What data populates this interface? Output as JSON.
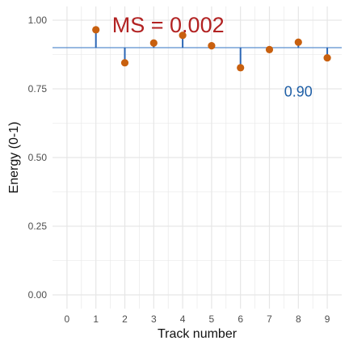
{
  "chart_data": {
    "type": "scatter",
    "xlabel": "Track number",
    "ylabel": "Energy (0-1)",
    "xlim": [
      -0.5,
      9.5
    ],
    "ylim": [
      -0.05,
      1.05
    ],
    "x_ticks": [
      0,
      1,
      2,
      3,
      4,
      5,
      6,
      7,
      8,
      9
    ],
    "x_tick_labels": [
      "0",
      "1",
      "2",
      "3",
      "4",
      "5",
      "6",
      "7",
      "8",
      "9"
    ],
    "y_ticks": [
      0.0,
      0.25,
      0.5,
      0.75,
      1.0
    ],
    "y_tick_labels": [
      "0.00",
      "0.25",
      "0.50",
      "0.75",
      "1.00"
    ],
    "grid": true,
    "reference_line": {
      "value": 0.9,
      "label": "0.90"
    },
    "points": [
      {
        "x": 1,
        "y": 0.965
      },
      {
        "x": 2,
        "y": 0.845
      },
      {
        "x": 3,
        "y": 0.917
      },
      {
        "x": 4,
        "y": 0.945
      },
      {
        "x": 5,
        "y": 0.907
      },
      {
        "x": 6,
        "y": 0.827
      },
      {
        "x": 7,
        "y": 0.893
      },
      {
        "x": 8,
        "y": 0.92
      },
      {
        "x": 9,
        "y": 0.863
      }
    ],
    "annotations": [
      {
        "text": "MS = 0.002",
        "x": 3.5,
        "y": 0.985,
        "style": "ms"
      },
      {
        "text": "0.90",
        "x": 8,
        "y": 0.74,
        "style": "mean"
      }
    ],
    "colors": {
      "point": "#c8600f",
      "stem": "#2b66b5",
      "reference_line": "#5b8fcf",
      "grid": "#e6e6e6",
      "ms_text": "#b22222",
      "mean_text": "#1f5fa6"
    }
  }
}
